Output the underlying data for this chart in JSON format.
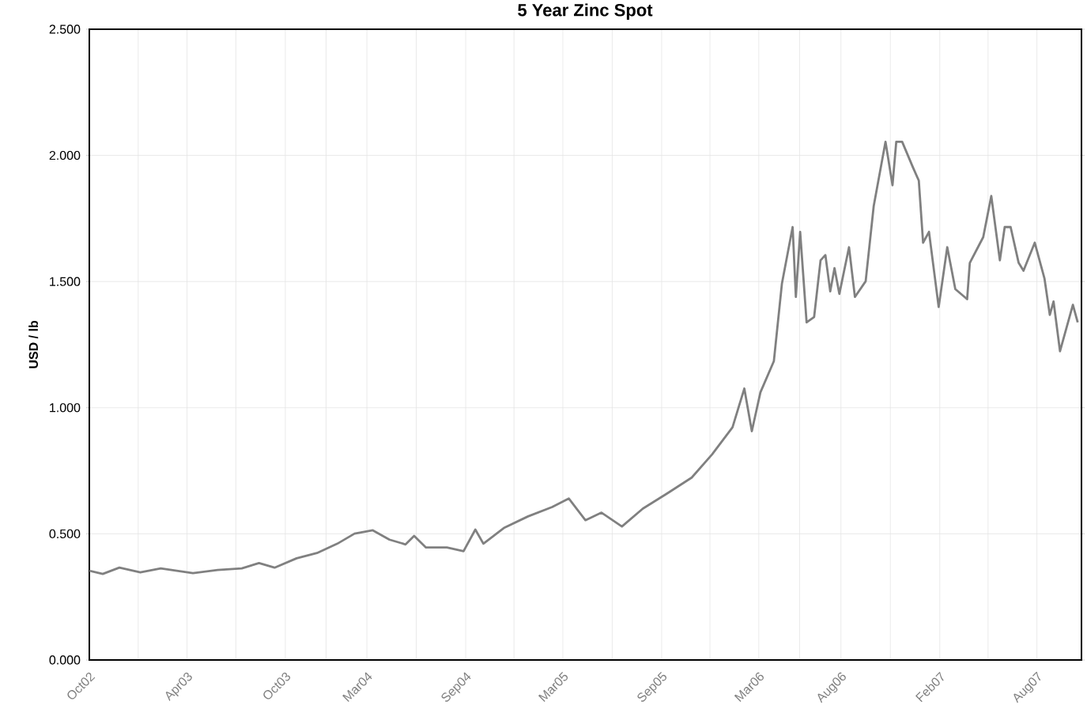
{
  "chart_data": {
    "type": "line",
    "title": "5 Year Zinc Spot",
    "ylabel": "USD / lb",
    "color": "#808080",
    "grid": true,
    "x": [
      "2002-10-01",
      "2002-10-26",
      "2002-11-26",
      "2003-01-04",
      "2003-02-11",
      "2003-04-12",
      "2003-05-28",
      "2003-07-12",
      "2003-08-13",
      "2003-09-11",
      "2003-10-22",
      "2003-11-29",
      "2004-01-06",
      "2004-02-07",
      "2004-03-12",
      "2004-04-12",
      "2004-05-12",
      "2004-05-28",
      "2004-06-19",
      "2004-07-28",
      "2004-08-28",
      "2004-09-19",
      "2004-10-04",
      "2004-11-11",
      "2004-12-26",
      "2005-02-09",
      "2005-03-12",
      "2005-04-12",
      "2005-05-12",
      "2005-06-19",
      "2005-07-28",
      "2005-09-12",
      "2005-10-27",
      "2005-12-04",
      "2006-01-11",
      "2006-02-02",
      "2006-02-16",
      "2006-03-04",
      "2006-03-29",
      "2006-04-13",
      "2006-05-03",
      "2006-05-09",
      "2006-05-17",
      "2006-05-29",
      "2006-06-12",
      "2006-06-24",
      "2006-07-03",
      "2006-07-12",
      "2006-07-20",
      "2006-07-29",
      "2006-08-16",
      "2006-08-27",
      "2006-09-16",
      "2006-10-01",
      "2006-10-23",
      "2006-11-05",
      "2006-11-12",
      "2006-11-23",
      "2006-12-13",
      "2006-12-24",
      "2007-01-01",
      "2007-01-12",
      "2007-01-30",
      "2007-02-15",
      "2007-03-02",
      "2007-03-24",
      "2007-03-29",
      "2007-04-23",
      "2007-05-08",
      "2007-05-24",
      "2007-06-02",
      "2007-06-13",
      "2007-06-28",
      "2007-07-07",
      "2007-07-28",
      "2007-08-15",
      "2007-08-25",
      "2007-09-01",
      "2007-09-13",
      "2007-10-07",
      "2007-10-16"
    ],
    "values": [
      0.354,
      0.341,
      0.366,
      0.347,
      0.363,
      0.344,
      0.357,
      0.363,
      0.384,
      0.366,
      0.403,
      0.424,
      0.461,
      0.501,
      0.514,
      0.477,
      0.458,
      0.492,
      0.446,
      0.446,
      0.431,
      0.517,
      0.461,
      0.523,
      0.569,
      0.606,
      0.64,
      0.554,
      0.584,
      0.529,
      0.6,
      0.661,
      0.723,
      0.815,
      0.922,
      1.076,
      0.907,
      1.061,
      1.184,
      1.491,
      1.716,
      1.439,
      1.697,
      1.338,
      1.359,
      1.584,
      1.605,
      1.461,
      1.553,
      1.451,
      1.636,
      1.439,
      1.501,
      1.799,
      2.054,
      1.882,
      2.054,
      2.054,
      1.953,
      1.9,
      1.654,
      1.697,
      1.399,
      1.636,
      1.47,
      1.43,
      1.574,
      1.676,
      1.839,
      1.584,
      1.716,
      1.716,
      1.574,
      1.543,
      1.654,
      1.513,
      1.368,
      1.421,
      1.224,
      1.408,
      1.338
    ],
    "xlim": [
      "2002-10-01",
      "2007-10-23"
    ],
    "xticks": [
      {
        "value": "2002-10",
        "label": "Oct02"
      },
      {
        "value": "2002-12-31",
        "label": null
      },
      {
        "value": "2003-04",
        "label": "Apr03"
      },
      {
        "value": "2003-07-01",
        "label": null
      },
      {
        "value": "2003-10",
        "label": "Oct03"
      },
      {
        "value": "2003-12-16",
        "label": null
      },
      {
        "value": "2004-03",
        "label": "Mar04"
      },
      {
        "value": "2004-06-01",
        "label": null
      },
      {
        "value": "2004-09",
        "label": "Sep04"
      },
      {
        "value": "2004-11-30",
        "label": null
      },
      {
        "value": "2005-03",
        "label": "Mar05"
      },
      {
        "value": "2005-06-01",
        "label": null
      },
      {
        "value": "2005-09",
        "label": "Sep05"
      },
      {
        "value": "2005-11-30",
        "label": null
      },
      {
        "value": "2006-03",
        "label": "Mar06"
      },
      {
        "value": "2006-05-16",
        "label": null
      },
      {
        "value": "2006-08",
        "label": "Aug06"
      },
      {
        "value": "2006-11-01",
        "label": null
      },
      {
        "value": "2007-02",
        "label": "Feb07"
      },
      {
        "value": "2007-05-02",
        "label": null
      },
      {
        "value": "2007-08",
        "label": "Aug07"
      }
    ],
    "ylim": [
      0,
      2.5
    ],
    "yticks": [
      {
        "value": 0,
        "label": "0.000"
      },
      {
        "value": 0.5,
        "label": "0.500"
      },
      {
        "value": 1,
        "label": "1.000"
      },
      {
        "value": 1.5,
        "label": "1.500"
      },
      {
        "value": 2,
        "label": "2.000"
      },
      {
        "value": 2.5,
        "label": "2.500"
      }
    ]
  }
}
